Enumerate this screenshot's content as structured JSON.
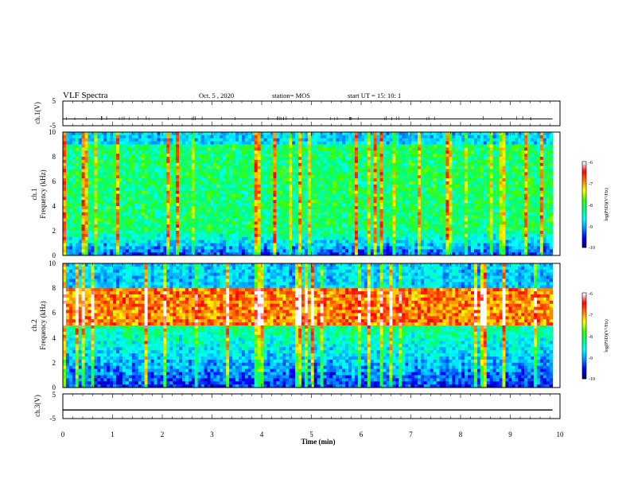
{
  "header": {
    "title": "VLF Spectra",
    "date": "Oct. 5  , 2020",
    "station": "station= MOS",
    "start": "start  UT  =   15: 10: 1"
  },
  "chart_data": [
    {
      "type": "line",
      "panel": "ch1-waveform",
      "ylabel": "ch.1(V)",
      "ylim": [
        -5,
        5
      ],
      "yticks": [
        "5",
        "-5"
      ],
      "x": [
        0,
        9.85
      ],
      "values": [
        -2.2,
        -2.2
      ]
    },
    {
      "type": "heatmap",
      "panel": "ch1-spectrogram",
      "ylabel": "ch.1\nFrequency (kHz)",
      "ylabel_lines": [
        "ch.1",
        "Frequency (kHz)"
      ],
      "ylim": [
        0,
        10
      ],
      "yticks": [
        "0",
        "2",
        "4",
        "6",
        "8",
        "10"
      ],
      "xlim": [
        0,
        9.85
      ],
      "color_scale": {
        "min": -10,
        "max": -6,
        "label": "log(PSD)(V²/Hz)",
        "ticks": [
          "-6",
          "-7",
          "-8",
          "-9",
          "-10"
        ]
      },
      "dominant_band_khz": [
        2,
        9
      ],
      "mean_log_psd_band": -8.3
    },
    {
      "type": "heatmap",
      "panel": "ch2-spectrogram",
      "ylabel": "ch.2\nFrequency (kHz)",
      "ylabel_lines": [
        "ch.2",
        "Frequency (kHz)"
      ],
      "ylim": [
        0,
        10
      ],
      "yticks": [
        "0",
        "2",
        "4",
        "6",
        "8",
        "10"
      ],
      "xlim": [
        0,
        9.85
      ],
      "color_scale": {
        "min": -10,
        "max": -6,
        "label": "log(PSD)(V²/Hz)",
        "ticks": [
          "-6",
          "-7",
          "-8",
          "-9",
          "-10"
        ]
      },
      "dominant_band_khz": [
        5,
        8
      ],
      "mean_log_psd_band": -7.0
    },
    {
      "type": "line",
      "panel": "ch3-waveform",
      "ylabel": "ch.3(V)",
      "ylim": [
        -5,
        5
      ],
      "yticks": [
        "5",
        "-5"
      ],
      "x": [
        0,
        9.85
      ],
      "values": [
        -1.5,
        -1.5
      ],
      "xlabel": "Time  (min)",
      "xlim": [
        0,
        10
      ],
      "xticks": [
        "0",
        "1",
        "2",
        "3",
        "4",
        "5",
        "6",
        "7",
        "8",
        "9",
        "10"
      ]
    }
  ],
  "colors": {
    "colormap": [
      "#00007a",
      "#0000ff",
      "#0096ff",
      "#00ffff",
      "#00ff80",
      "#40ff00",
      "#ffff00",
      "#ff8000",
      "#ff0000",
      "#ffffff"
    ],
    "axis": "#000000"
  }
}
